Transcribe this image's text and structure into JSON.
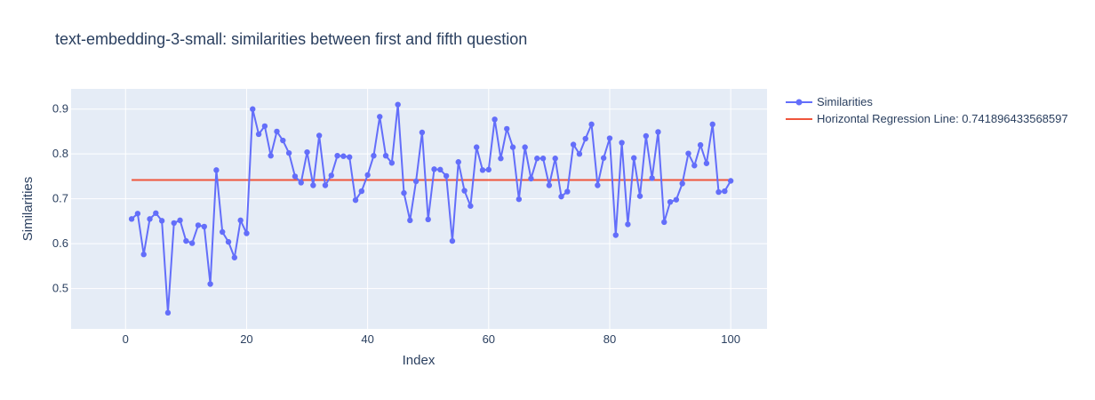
{
  "chart_data": {
    "type": "line",
    "title": "text-embedding-3-small: similarities between first and fifth question",
    "xlabel": "Index",
    "ylabel": "Similarities",
    "xlim": [
      -9,
      106
    ],
    "ylim": [
      0.41,
      0.945
    ],
    "x_ticks": [
      0,
      20,
      40,
      60,
      80,
      100
    ],
    "y_ticks": [
      0.5,
      0.6,
      0.7,
      0.8,
      0.9
    ],
    "grid": true,
    "legend_position": "right",
    "plot_background": "#e5ecf6",
    "series": [
      {
        "name": "Similarities",
        "mode": "lines+markers",
        "color": "#636efa",
        "x": [
          1,
          2,
          3,
          4,
          5,
          6,
          7,
          8,
          9,
          10,
          11,
          12,
          13,
          14,
          15,
          16,
          17,
          18,
          19,
          20,
          21,
          22,
          23,
          24,
          25,
          26,
          27,
          28,
          29,
          30,
          31,
          32,
          33,
          34,
          35,
          36,
          37,
          38,
          39,
          40,
          41,
          42,
          43,
          44,
          45,
          46,
          47,
          48,
          49,
          50,
          51,
          52,
          53,
          54,
          55,
          56,
          57,
          58,
          59,
          60,
          61,
          62,
          63,
          64,
          65,
          66,
          67,
          68,
          69,
          70,
          71,
          72,
          73,
          74,
          75,
          76,
          77,
          78,
          79,
          80,
          81,
          82,
          83,
          84,
          85,
          86,
          87,
          88,
          89,
          90,
          91,
          92,
          93,
          94,
          95,
          96,
          97,
          98,
          99,
          100
        ],
        "y": [
          0.655,
          0.667,
          0.576,
          0.655,
          0.668,
          0.651,
          0.446,
          0.646,
          0.652,
          0.606,
          0.601,
          0.641,
          0.638,
          0.51,
          0.764,
          0.626,
          0.604,
          0.569,
          0.652,
          0.623,
          0.9,
          0.844,
          0.862,
          0.796,
          0.85,
          0.83,
          0.802,
          0.75,
          0.736,
          0.804,
          0.73,
          0.841,
          0.73,
          0.752,
          0.796,
          0.795,
          0.793,
          0.697,
          0.717,
          0.753,
          0.796,
          0.883,
          0.796,
          0.78,
          0.91,
          0.713,
          0.652,
          0.739,
          0.848,
          0.654,
          0.766,
          0.765,
          0.751,
          0.606,
          0.782,
          0.718,
          0.684,
          0.815,
          0.764,
          0.765,
          0.877,
          0.79,
          0.856,
          0.815,
          0.699,
          0.815,
          0.745,
          0.79,
          0.79,
          0.73,
          0.79,
          0.705,
          0.716,
          0.821,
          0.8,
          0.834,
          0.866,
          0.73,
          0.791,
          0.835,
          0.619,
          0.825,
          0.643,
          0.791,
          0.706,
          0.84,
          0.746,
          0.849,
          0.648,
          0.693,
          0.698,
          0.734,
          0.801,
          0.774,
          0.82,
          0.779,
          0.866,
          0.715,
          0.717,
          0.74
        ]
      },
      {
        "name": "Horizontal Regression Line: 0.741896433568597",
        "mode": "lines",
        "color": "#ef553b",
        "x": [
          1,
          100
        ],
        "y": [
          0.741896433568597,
          0.741896433568597
        ]
      }
    ]
  }
}
